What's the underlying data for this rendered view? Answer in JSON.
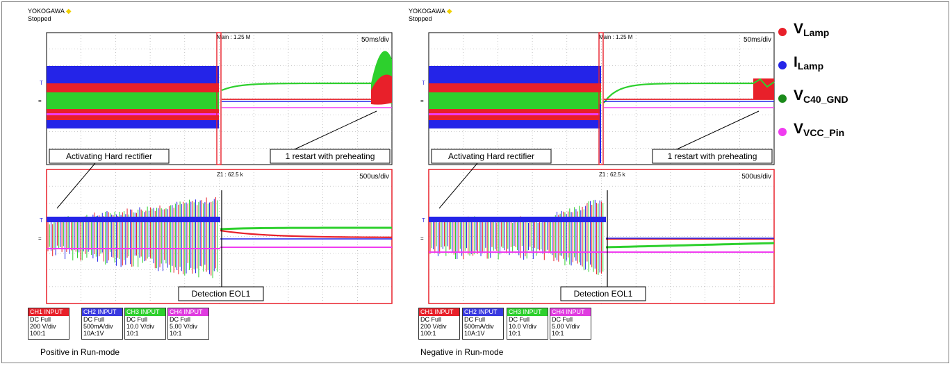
{
  "brand": "YOKOGAWA",
  "status": "Stopped",
  "panels": [
    {
      "caption": "Positive in Run-mode",
      "main_label": "Main : 1.25 M",
      "main_timebase": "50ms/div",
      "zoom_label": "Z1 : 62.5 k",
      "zoom_timebase": "500us/div",
      "annotations": {
        "rectifier": "Activating Hard rectifier",
        "restart": "1 restart with preheating",
        "detection": "Detection EOL1"
      }
    },
    {
      "caption": "Negative in Run-mode",
      "main_label": "Main : 1.25 M",
      "main_timebase": "50ms/div",
      "zoom_label": "Z1 : 62.5 k",
      "zoom_timebase": "500us/div",
      "annotations": {
        "rectifier": "Activating Hard rectifier",
        "restart": "1 restart with preheating",
        "detection": "Detection EOL1"
      }
    }
  ],
  "channels": [
    {
      "header": "CH1 INPUT",
      "coupling": "DC Full",
      "scale": "200 V/div",
      "probe": "100:1",
      "color": "#e8202a"
    },
    {
      "header": "CH2 INPUT",
      "coupling": "DC Full",
      "scale": "500mA/div",
      "probe": "10A:1V",
      "color": "#3a3ae0"
    },
    {
      "header": "CH3 INPUT",
      "coupling": "DC Full",
      "scale": "10.0 V/div",
      "probe": "10:1",
      "color": "#2dd02d"
    },
    {
      "header": "CH4 INPUT",
      "coupling": "DC Full",
      "scale": "5.00 V/div",
      "probe": "10:1",
      "color": "#e03ce0"
    }
  ],
  "legend": [
    {
      "main": "V",
      "sub": "Lamp",
      "color": "#e8202a"
    },
    {
      "main": "I",
      "sub": "Lamp",
      "color": "#2424e8"
    },
    {
      "main": "V",
      "sub": "C40_GND",
      "color": "#1a8a1a"
    },
    {
      "main": "V",
      "sub": "VCC_Pin",
      "color": "#f03cf0"
    }
  ],
  "chart_data": {
    "type": "line",
    "title": "",
    "series": [
      {
        "name": "V",
        "channel": "CH1",
        "color": "#e8202a"
      },
      {
        "name": "I",
        "channel": "CH2",
        "color": "#2424e8"
      },
      {
        "name": "V",
        "channel": "CH3",
        "color": "#1a8a1a"
      },
      {
        "name": "V",
        "channel": "CH4",
        "color": "#f03cf0"
      }
    ],
    "grid": true
  }
}
